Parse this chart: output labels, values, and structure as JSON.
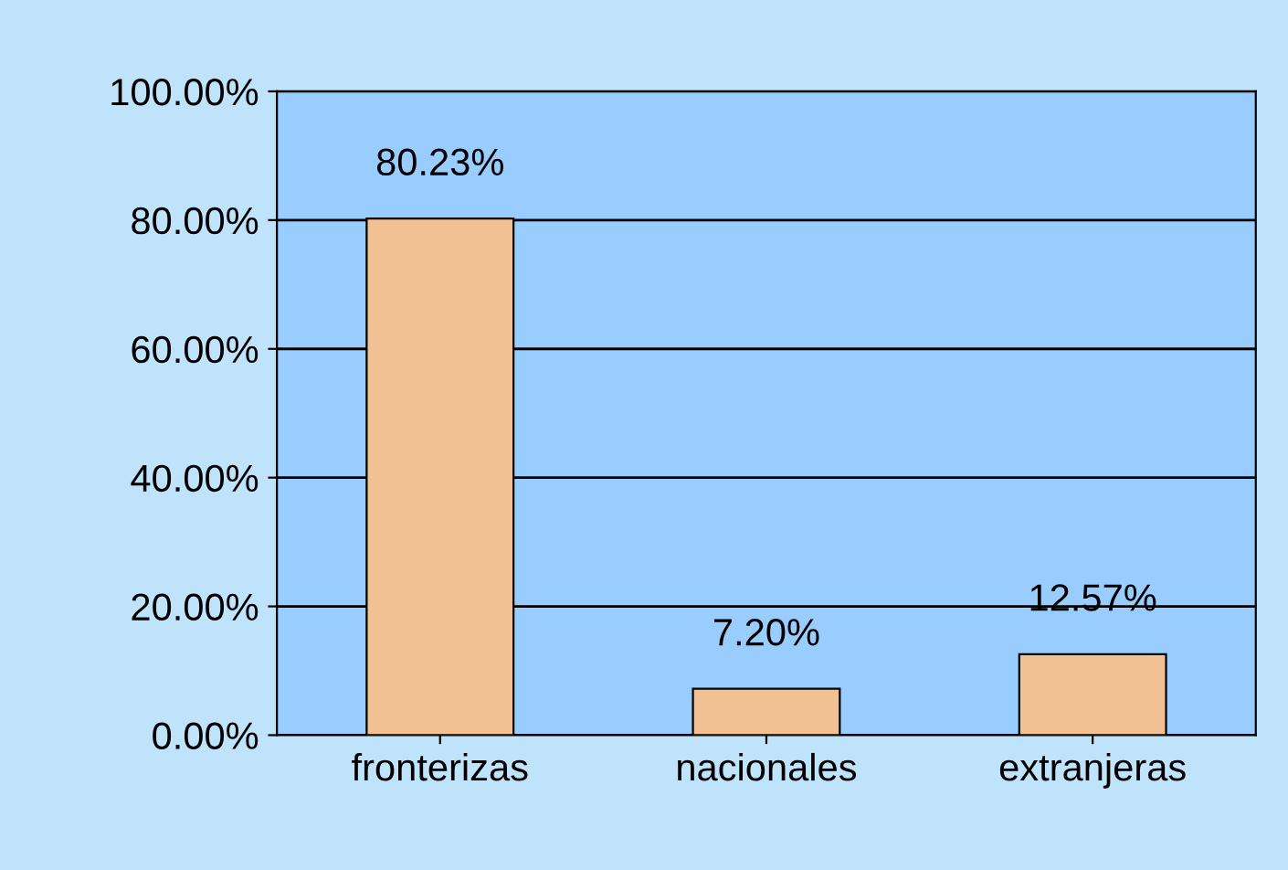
{
  "chart_data": {
    "type": "bar",
    "categories": [
      "fronterizas",
      "nacionales",
      "extranjeras"
    ],
    "values": [
      80.23,
      7.2,
      12.57
    ],
    "value_labels": [
      "80.23%",
      "7.20%",
      "12.57%"
    ],
    "color": "#f2c193",
    "ylim": [
      0,
      100
    ],
    "yticks": [
      {
        "value": 0,
        "label": "0.00%"
      },
      {
        "value": 20,
        "label": "20.00%"
      },
      {
        "value": 40,
        "label": "40.00%"
      },
      {
        "value": 60,
        "label": "60.00%"
      },
      {
        "value": 80,
        "label": "80.00%"
      },
      {
        "value": 100,
        "label": "100.00%"
      }
    ],
    "grid": "y"
  }
}
